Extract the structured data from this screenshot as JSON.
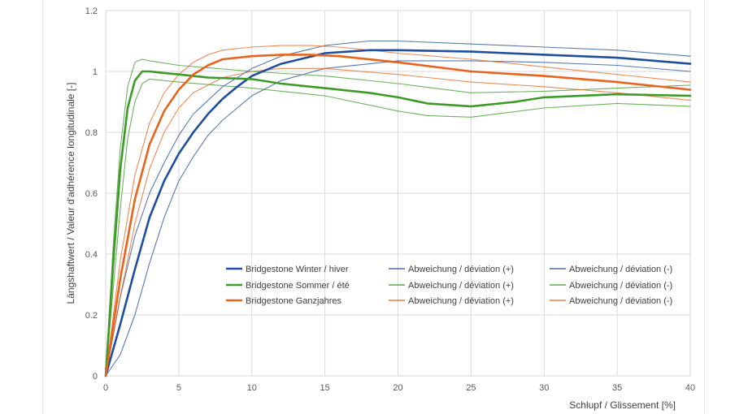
{
  "chart_data": {
    "type": "line",
    "xlabel": "Schlupf / Glissement [%]",
    "ylabel": "Längshaftwert / Valeur d'adhérence longitudinale [-]",
    "xlim": [
      0,
      40
    ],
    "ylim": [
      0,
      1.2
    ],
    "x_ticks": [
      "0",
      "5",
      "10",
      "15",
      "20",
      "25",
      "30",
      "35",
      "40"
    ],
    "y_ticks": [
      "0",
      "0.2",
      "0.4",
      "0.6",
      "0.8",
      "1",
      "1.2"
    ],
    "grid": true,
    "legend_position": "bottom-center, inside plot area",
    "colors": {
      "winter": "#1f4e9e",
      "summer": "#3c9a26",
      "allseason": "#e8641c"
    },
    "series": [
      {
        "name": "Bridgestone Winter / hiver",
        "group": "winter",
        "kind": "main",
        "x": [
          0,
          1,
          2,
          3,
          4,
          5,
          6,
          7,
          8,
          9,
          10,
          12,
          15,
          18,
          20,
          25,
          30,
          35,
          40
        ],
        "y": [
          0,
          0.17,
          0.35,
          0.52,
          0.64,
          0.73,
          0.8,
          0.86,
          0.91,
          0.95,
          0.985,
          1.025,
          1.06,
          1.07,
          1.07,
          1.065,
          1.055,
          1.045,
          1.025
        ]
      },
      {
        "name": "Abweichung / déviation (+)",
        "group": "winter",
        "kind": "dev",
        "x": [
          0,
          1,
          2,
          3,
          4,
          5,
          6,
          8,
          10,
          12,
          15,
          18,
          20,
          25,
          30,
          35,
          40
        ],
        "y": [
          0,
          0.26,
          0.46,
          0.6,
          0.7,
          0.79,
          0.86,
          0.95,
          1.01,
          1.05,
          1.085,
          1.1,
          1.1,
          1.09,
          1.08,
          1.07,
          1.05
        ]
      },
      {
        "name": "Abweichung / déviation (-)",
        "group": "winter",
        "kind": "dev",
        "x": [
          0,
          1,
          2,
          3,
          4,
          5,
          6,
          7,
          8,
          10,
          12,
          15,
          20,
          25,
          30,
          35,
          40
        ],
        "y": [
          0,
          0.07,
          0.2,
          0.37,
          0.52,
          0.64,
          0.72,
          0.79,
          0.84,
          0.92,
          0.97,
          1.01,
          1.035,
          1.035,
          1.03,
          1.02,
          1.0
        ]
      },
      {
        "name": "Bridgestone Sommer / été",
        "group": "summer",
        "kind": "main",
        "x": [
          0,
          0.5,
          1,
          1.5,
          2,
          2.5,
          3,
          4,
          5,
          7,
          10,
          12,
          15,
          18,
          20,
          22,
          25,
          28,
          30,
          35,
          40
        ],
        "y": [
          0,
          0.36,
          0.68,
          0.88,
          0.97,
          1.0,
          1.0,
          0.995,
          0.99,
          0.98,
          0.975,
          0.96,
          0.945,
          0.93,
          0.915,
          0.895,
          0.885,
          0.9,
          0.915,
          0.925,
          0.92
        ]
      },
      {
        "name": "Abweichung / déviation (+)",
        "group": "summer",
        "kind": "dev",
        "x": [
          0,
          0.5,
          1,
          1.5,
          2,
          2.5,
          3,
          5,
          10,
          15,
          20,
          25,
          30,
          35,
          40
        ],
        "y": [
          0,
          0.42,
          0.75,
          0.95,
          1.03,
          1.04,
          1.035,
          1.02,
          1.0,
          0.985,
          0.96,
          0.93,
          0.935,
          0.945,
          0.955
        ]
      },
      {
        "name": "Abweichung / déviation (-)",
        "group": "summer",
        "kind": "dev",
        "x": [
          0,
          0.5,
          1,
          1.5,
          2,
          2.5,
          3,
          4,
          5,
          10,
          15,
          20,
          22,
          25,
          30,
          35,
          40
        ],
        "y": [
          0,
          0.28,
          0.55,
          0.78,
          0.9,
          0.96,
          0.975,
          0.97,
          0.965,
          0.945,
          0.92,
          0.87,
          0.855,
          0.85,
          0.88,
          0.895,
          0.885
        ]
      },
      {
        "name": "Bridgestone Ganzjahres",
        "group": "allseason",
        "kind": "main",
        "x": [
          0,
          1,
          2,
          3,
          4,
          5,
          6,
          7,
          8,
          10,
          12,
          14,
          16,
          20,
          25,
          30,
          35,
          40
        ],
        "y": [
          0,
          0.32,
          0.58,
          0.76,
          0.87,
          0.94,
          0.99,
          1.02,
          1.04,
          1.05,
          1.055,
          1.055,
          1.05,
          1.03,
          1.0,
          0.985,
          0.965,
          0.94
        ]
      },
      {
        "name": "Abweichung / déviation (+)",
        "group": "allseason",
        "kind": "dev",
        "x": [
          0,
          1,
          2,
          3,
          4,
          5,
          6,
          7,
          8,
          10,
          12,
          14,
          16,
          20,
          25,
          30,
          35,
          40
        ],
        "y": [
          0,
          0.38,
          0.66,
          0.83,
          0.93,
          0.99,
          1.03,
          1.055,
          1.07,
          1.08,
          1.085,
          1.085,
          1.08,
          1.06,
          1.04,
          1.015,
          0.99,
          0.965
        ]
      },
      {
        "name": "Abweichung / déviation (-)",
        "group": "allseason",
        "kind": "dev",
        "x": [
          0,
          1,
          2,
          3,
          4,
          5,
          6,
          8,
          10,
          12,
          15,
          20,
          25,
          30,
          35,
          40
        ],
        "y": [
          0,
          0.26,
          0.5,
          0.68,
          0.8,
          0.88,
          0.93,
          0.98,
          1.0,
          1.01,
          1.01,
          0.99,
          0.965,
          0.95,
          0.93,
          0.905
        ]
      }
    ]
  }
}
